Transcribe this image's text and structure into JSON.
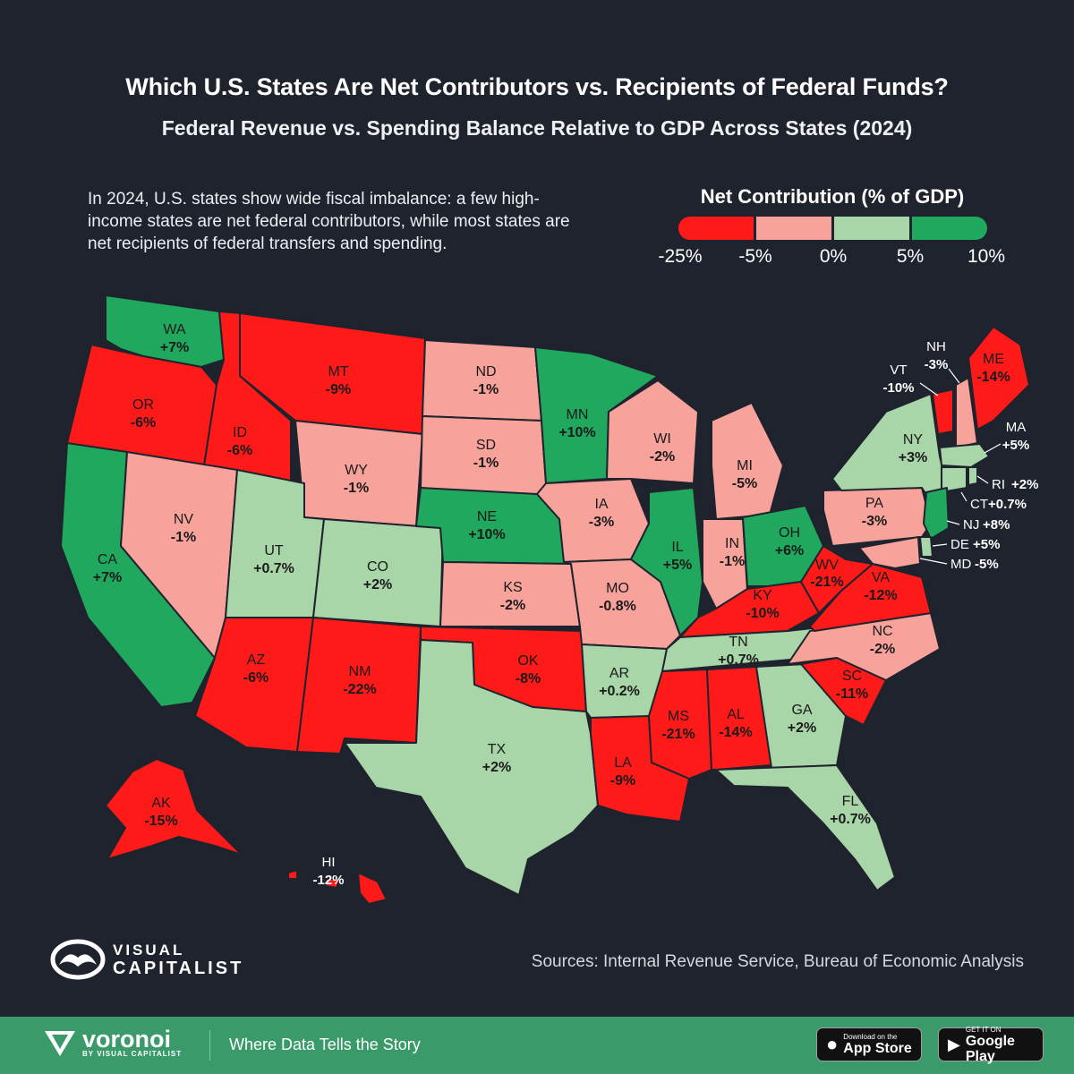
{
  "header": {
    "title": "Which U.S. States Are Net Contributors vs. Recipients of Federal Funds?",
    "subtitle": "Federal Revenue vs. Spending Balance Relative to GDP Across States (2024)",
    "description": "In 2024, U.S. states show wide fiscal imbalance: a few high-income states are net federal contributors, while most states are net recipients of federal transfers and spending."
  },
  "legend": {
    "title": "Net Contribution (% of GDP)",
    "colors": [
      "#ff1a1a",
      "#f7a39c",
      "#a8d6a8",
      "#1fa85e"
    ],
    "ticks": [
      "-25%",
      "-5%",
      "0%",
      "5%",
      "10%"
    ]
  },
  "colors": {
    "background": "#1f232d",
    "strong_negative": "#ff1a1a",
    "mild_negative": "#f7a39c",
    "mild_positive": "#a8d6a8",
    "strong_positive": "#1fa85e",
    "footer": "#3a9a6a"
  },
  "states": {
    "WA": {
      "abbr": "WA",
      "value": "+7%"
    },
    "OR": {
      "abbr": "OR",
      "value": "-6%"
    },
    "CA": {
      "abbr": "CA",
      "value": "+7%"
    },
    "ID": {
      "abbr": "ID",
      "value": "-6%"
    },
    "NV": {
      "abbr": "NV",
      "value": "-1%"
    },
    "MT": {
      "abbr": "MT",
      "value": "-9%"
    },
    "WY": {
      "abbr": "WY",
      "value": "-1%"
    },
    "UT": {
      "abbr": "UT",
      "value": "+0.7%"
    },
    "CO": {
      "abbr": "CO",
      "value": "+2%"
    },
    "AZ": {
      "abbr": "AZ",
      "value": "-6%"
    },
    "NM": {
      "abbr": "NM",
      "value": "-22%"
    },
    "ND": {
      "abbr": "ND",
      "value": "-1%"
    },
    "SD": {
      "abbr": "SD",
      "value": "-1%"
    },
    "NE": {
      "abbr": "NE",
      "value": "+10%"
    },
    "KS": {
      "abbr": "KS",
      "value": "-2%"
    },
    "OK": {
      "abbr": "OK",
      "value": "-8%"
    },
    "TX": {
      "abbr": "TX",
      "value": "+2%"
    },
    "MN": {
      "abbr": "MN",
      "value": "+10%"
    },
    "IA": {
      "abbr": "IA",
      "value": "-3%"
    },
    "MO": {
      "abbr": "MO",
      "value": "-0.8%"
    },
    "AR": {
      "abbr": "AR",
      "value": "+0.2%"
    },
    "LA": {
      "abbr": "LA",
      "value": "-9%"
    },
    "WI": {
      "abbr": "WI",
      "value": "-2%"
    },
    "IL": {
      "abbr": "IL",
      "value": "+5%"
    },
    "MI": {
      "abbr": "MI",
      "value": "-5%"
    },
    "IN": {
      "abbr": "IN",
      "value": "-1%"
    },
    "OH": {
      "abbr": "OH",
      "value": "+6%"
    },
    "KY": {
      "abbr": "KY",
      "value": "-10%"
    },
    "TN": {
      "abbr": "TN",
      "value": "+0.7%"
    },
    "MS": {
      "abbr": "MS",
      "value": "-21%"
    },
    "AL": {
      "abbr": "AL",
      "value": "-14%"
    },
    "GA": {
      "abbr": "GA",
      "value": "+2%"
    },
    "FL": {
      "abbr": "FL",
      "value": "+0.7%"
    },
    "SC": {
      "abbr": "SC",
      "value": "-11%"
    },
    "NC": {
      "abbr": "NC",
      "value": "-2%"
    },
    "VA": {
      "abbr": "VA",
      "value": "-12%"
    },
    "WV": {
      "abbr": "WV",
      "value": "-21%"
    },
    "PA": {
      "abbr": "PA",
      "value": "-3%"
    },
    "NY": {
      "abbr": "NY",
      "value": "+3%"
    },
    "VT": {
      "abbr": "VT",
      "value": "-10%"
    },
    "NH": {
      "abbr": "NH",
      "value": "-3%"
    },
    "ME": {
      "abbr": "ME",
      "value": "-14%"
    },
    "MA": {
      "abbr": "MA",
      "value": "+5%"
    },
    "RI": {
      "abbr": "RI",
      "value": "+2%"
    },
    "CT": {
      "abbr": "CT",
      "value": "+0.7%"
    },
    "NJ": {
      "abbr": "NJ",
      "value": "+8%"
    },
    "DE": {
      "abbr": "DE",
      "value": "+5%"
    },
    "MD": {
      "abbr": "MD",
      "value": "-5%"
    },
    "AK": {
      "abbr": "AK",
      "value": "-15%"
    },
    "HI": {
      "abbr": "HI",
      "value": "-12%"
    }
  },
  "branding": {
    "visual": "VISUAL",
    "capitalist": "CAPITALIST"
  },
  "sources": "Sources: Internal Revenue Service, Bureau of Economic Analysis",
  "footer": {
    "brand": "voronoi",
    "by": "BY VISUAL CAPITALIST",
    "tagline": "Where Data Tells the Story",
    "appstore_small": "Download on the",
    "appstore_big": "App Store",
    "googleplay_small": "GET IT ON",
    "googleplay_big": "Google Play"
  }
}
